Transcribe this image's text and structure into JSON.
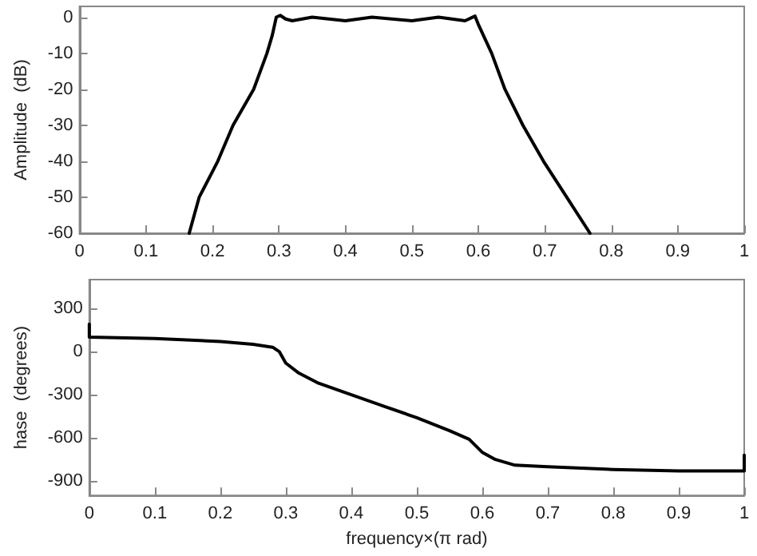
{
  "chart_data": [
    {
      "type": "line",
      "ylabel": "Amplitude  (dB)",
      "xlim": [
        0,
        1
      ],
      "xticks": [
        0,
        0.1,
        0.2,
        0.3,
        0.4,
        0.5,
        0.6,
        0.7,
        0.8,
        0.9,
        1
      ],
      "ylim": [
        -60,
        3
      ],
      "yticks": [
        -60,
        -50,
        -40,
        -30,
        -20,
        -10,
        0
      ],
      "grid": false,
      "marker": "none",
      "line_style": "solid",
      "series": [
        {
          "color": "#000000",
          "x": [
            0.165,
            0.18,
            0.208,
            0.231,
            0.262,
            0.282,
            0.29,
            0.296,
            0.302,
            0.31,
            0.32,
            0.35,
            0.4,
            0.44,
            0.5,
            0.54,
            0.58,
            0.595,
            0.6,
            0.62,
            0.64,
            0.667,
            0.698,
            0.733,
            0.768
          ],
          "values": [
            -60,
            -50,
            -40,
            -30,
            -20,
            -10,
            -5,
            0,
            0.5,
            -0.5,
            -1,
            0,
            -1,
            0,
            -1,
            0,
            -1,
            0.3,
            -2,
            -10,
            -20,
            -30,
            -40,
            -50,
            -60
          ]
        }
      ]
    },
    {
      "type": "line",
      "xlabel": "frequency×(π rad)",
      "ylabel": "hase  (degrees)",
      "xlim": [
        0,
        1
      ],
      "xticks": [
        0,
        0.1,
        0.2,
        0.3,
        0.4,
        0.5,
        0.6,
        0.7,
        0.8,
        0.9,
        1
      ],
      "ylim": [
        -1000,
        500
      ],
      "yticks": [
        -900,
        -600,
        -300,
        0,
        300
      ],
      "grid": false,
      "marker": "none",
      "line_style": "solid",
      "series": [
        {
          "color": "#000000",
          "x": [
            0,
            0,
            0.1,
            0.2,
            0.25,
            0.28,
            0.29,
            0.3,
            0.32,
            0.35,
            0.4,
            0.45,
            0.5,
            0.55,
            0.58,
            0.6,
            0.62,
            0.65,
            0.7,
            0.8,
            0.9,
            1,
            1
          ],
          "values": [
            190,
            100,
            90,
            70,
            50,
            30,
            0,
            -80,
            -150,
            -220,
            -300,
            -380,
            -460,
            -550,
            -610,
            -700,
            -750,
            -790,
            -800,
            -820,
            -830,
            -830,
            -720
          ]
        }
      ]
    }
  ]
}
